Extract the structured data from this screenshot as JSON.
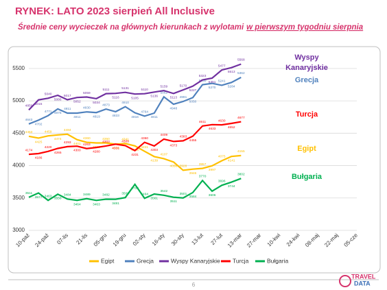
{
  "chart_data": {
    "type": "line",
    "title": "RYNEK: LATO 2023 sierpień All Inclusive",
    "subtitle": [
      "Średnie ceny wycieczek na głównych kierunkach z wylotami",
      "w pierwszym tygodniu sierpnia"
    ],
    "categories": [
      "10-paź",
      null,
      "24-paź",
      null,
      "07-lis",
      null,
      "21-lis",
      null,
      "05-gru",
      null,
      "19-gru",
      null,
      "02-sty",
      null,
      "16-sty",
      null,
      "30-sty",
      null,
      "13-lut",
      null,
      "27-lut",
      null,
      "13-mar",
      null,
      "27-mar",
      null,
      "10-kwi",
      null,
      "24-kwi",
      null,
      "08-maj",
      null,
      "22-maj",
      null,
      "05-cze"
    ],
    "series": [
      {
        "name": "Egipt",
        "color": "#ffc000",
        "values": [
          4453,
          4425,
          4459,
          4474,
          4484,
          4401,
          4360,
          4350,
          4350,
          4330,
          4341,
          4305,
          4221,
          4139,
          4107,
          4056,
          3928,
          3946,
          3957,
          3997,
          4075,
          4141,
          4155,
          null,
          null,
          null,
          null,
          null,
          null,
          null,
          null,
          null,
          null,
          null,
          null
        ]
      },
      {
        "name": "Grecja",
        "color": "#4f81bd",
        "values": [
          4643,
          4702,
          4771,
          4875,
          4811,
          4811,
          4830,
          4819,
          4873,
          4833,
          4910,
          4816,
          4764,
          4811,
          5062,
          4948,
          4991,
          5050,
          5250,
          5270,
          5241,
          5284,
          5362,
          null,
          null,
          null,
          null,
          null,
          null,
          null,
          null,
          null,
          null,
          null,
          null
        ]
      },
      {
        "name": "Wyspy Kanaryjskie",
        "color": "#7030a0",
        "values": [
          4859,
          5015,
          5040,
          5086,
          5017,
          5052,
          5059,
          5034,
          5111,
          5116,
          5131,
          5105,
          5110,
          5136,
          5159,
          5113,
          5170,
          5227,
          5323,
          5351,
          5477,
          5513,
          5568,
          null,
          null,
          null,
          null,
          null,
          null,
          null,
          null,
          null,
          null,
          null,
          null
        ]
      },
      {
        "name": "Turcja",
        "color": "#ff0000",
        "values": [
          4174,
          4186,
          4220,
          4265,
          4293,
          4300,
          4263,
          4280,
          4303,
          4331,
          4309,
          4231,
          4360,
          4303,
          4409,
          4373,
          4383,
          4455,
          4611,
          4633,
          4630,
          4652,
          4677,
          null,
          null,
          null,
          null,
          null,
          null,
          null,
          null,
          null,
          null,
          null,
          null
        ]
      },
      {
        "name": "Bułgaria",
        "color": "#00b050",
        "values": [
          3511,
          3577,
          3463,
          3558,
          3484,
          3464,
          3489,
          3463,
          3482,
          3481,
          3506,
          3710,
          3494,
          3561,
          3542,
          3511,
          3501,
          3584,
          3770,
          3606,
          3696,
          3744,
          3802,
          null,
          null,
          null,
          null,
          null,
          null,
          null,
          null,
          null,
          null,
          null,
          null
        ]
      }
    ],
    "annotations": [
      {
        "text": "Wyspy",
        "color": "#7030a0"
      },
      {
        "text": "Kanaryjskie",
        "color": "#7030a0"
      },
      {
        "text": "Grecja",
        "color": "#4f81bd"
      },
      {
        "text": "Turcja",
        "color": "#ff0000"
      },
      {
        "text": "Egipt",
        "color": "#ffc000"
      },
      {
        "text": "Bułgaria",
        "color": "#00b050"
      }
    ],
    "ylim": [
      3000,
      5700
    ],
    "yticks": [
      3000,
      3500,
      4000,
      4500,
      5000,
      5500
    ],
    "grid": true,
    "legend": "bottom",
    "page_number": "6",
    "logo": [
      "TRAVEL",
      "DATA"
    ]
  }
}
